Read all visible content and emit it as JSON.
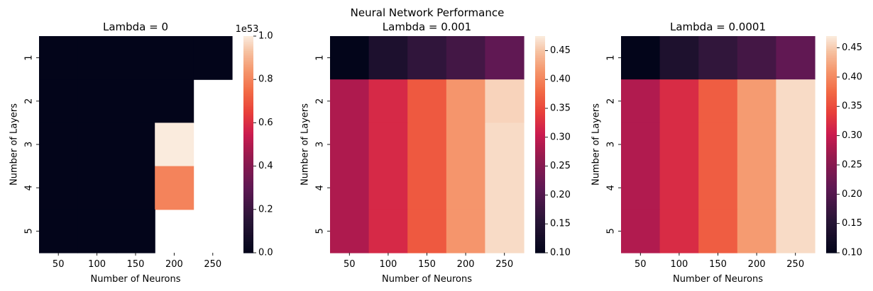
{
  "suptitle": "Neural Network Performance",
  "chart_data": [
    {
      "type": "heatmap",
      "title": "Lambda = 0",
      "xlabel": "Number of Neurons",
      "ylabel": "Number of Layers",
      "x": [
        "50",
        "100",
        "150",
        "200",
        "250"
      ],
      "y": [
        "1",
        "2",
        "3",
        "4",
        "5"
      ],
      "values": [
        [
          0,
          0,
          0,
          0,
          0
        ],
        [
          0,
          0,
          0,
          0,
          null
        ],
        [
          0,
          0,
          0,
          1.0,
          null
        ],
        [
          0,
          0,
          0,
          0.8,
          null
        ],
        [
          0,
          0,
          0,
          null,
          null
        ]
      ],
      "colorbar": {
        "min": 0,
        "max": 1.0,
        "ticks": [
          "0.0",
          "0.2",
          "0.4",
          "0.6",
          "0.8",
          "1.0"
        ],
        "tick_values": [
          0,
          0.2,
          0.4,
          0.6,
          0.8,
          1.0
        ],
        "offset_label": "1e53"
      },
      "colormap": "rocket"
    },
    {
      "type": "heatmap",
      "title": "Lambda = 0.001",
      "xlabel": "Number of Neurons",
      "ylabel": "Number of Layers",
      "x": [
        "50",
        "100",
        "150",
        "200",
        "250"
      ],
      "y": [
        "1",
        "2",
        "3",
        "4",
        "5"
      ],
      "values": [
        [
          0.1,
          0.14,
          0.165,
          0.185,
          0.215
        ],
        [
          0.285,
          0.32,
          0.365,
          0.415,
          0.46
        ],
        [
          0.285,
          0.32,
          0.365,
          0.415,
          0.465
        ],
        [
          0.285,
          0.32,
          0.365,
          0.415,
          0.465
        ],
        [
          0.285,
          0.32,
          0.365,
          0.415,
          0.465
        ]
      ],
      "colorbar": {
        "min": 0.1,
        "max": 0.475,
        "ticks": [
          "0.10",
          "0.15",
          "0.20",
          "0.25",
          "0.30",
          "0.35",
          "0.40",
          "0.45"
        ],
        "tick_values": [
          0.1,
          0.15,
          0.2,
          0.25,
          0.3,
          0.35,
          0.4,
          0.45
        ]
      },
      "colormap": "rocket"
    },
    {
      "type": "heatmap",
      "title": "Lambda = 0.0001",
      "xlabel": "Number of Neurons",
      "ylabel": "Number of Layers",
      "x": [
        "50",
        "100",
        "150",
        "200",
        "250"
      ],
      "y": [
        "1",
        "2",
        "3",
        "4",
        "5"
      ],
      "values": [
        [
          0.1,
          0.14,
          0.165,
          0.185,
          0.215
        ],
        [
          0.285,
          0.32,
          0.365,
          0.415,
          0.46
        ],
        [
          0.285,
          0.32,
          0.365,
          0.415,
          0.46
        ],
        [
          0.285,
          0.32,
          0.365,
          0.415,
          0.46
        ],
        [
          0.285,
          0.32,
          0.365,
          0.415,
          0.46
        ]
      ],
      "colorbar": {
        "min": 0.1,
        "max": 0.47,
        "ticks": [
          "0.10",
          "0.15",
          "0.20",
          "0.25",
          "0.30",
          "0.35",
          "0.40",
          "0.45"
        ],
        "tick_values": [
          0.1,
          0.15,
          0.2,
          0.25,
          0.3,
          0.35,
          0.4,
          0.45
        ]
      },
      "colormap": "rocket"
    }
  ]
}
